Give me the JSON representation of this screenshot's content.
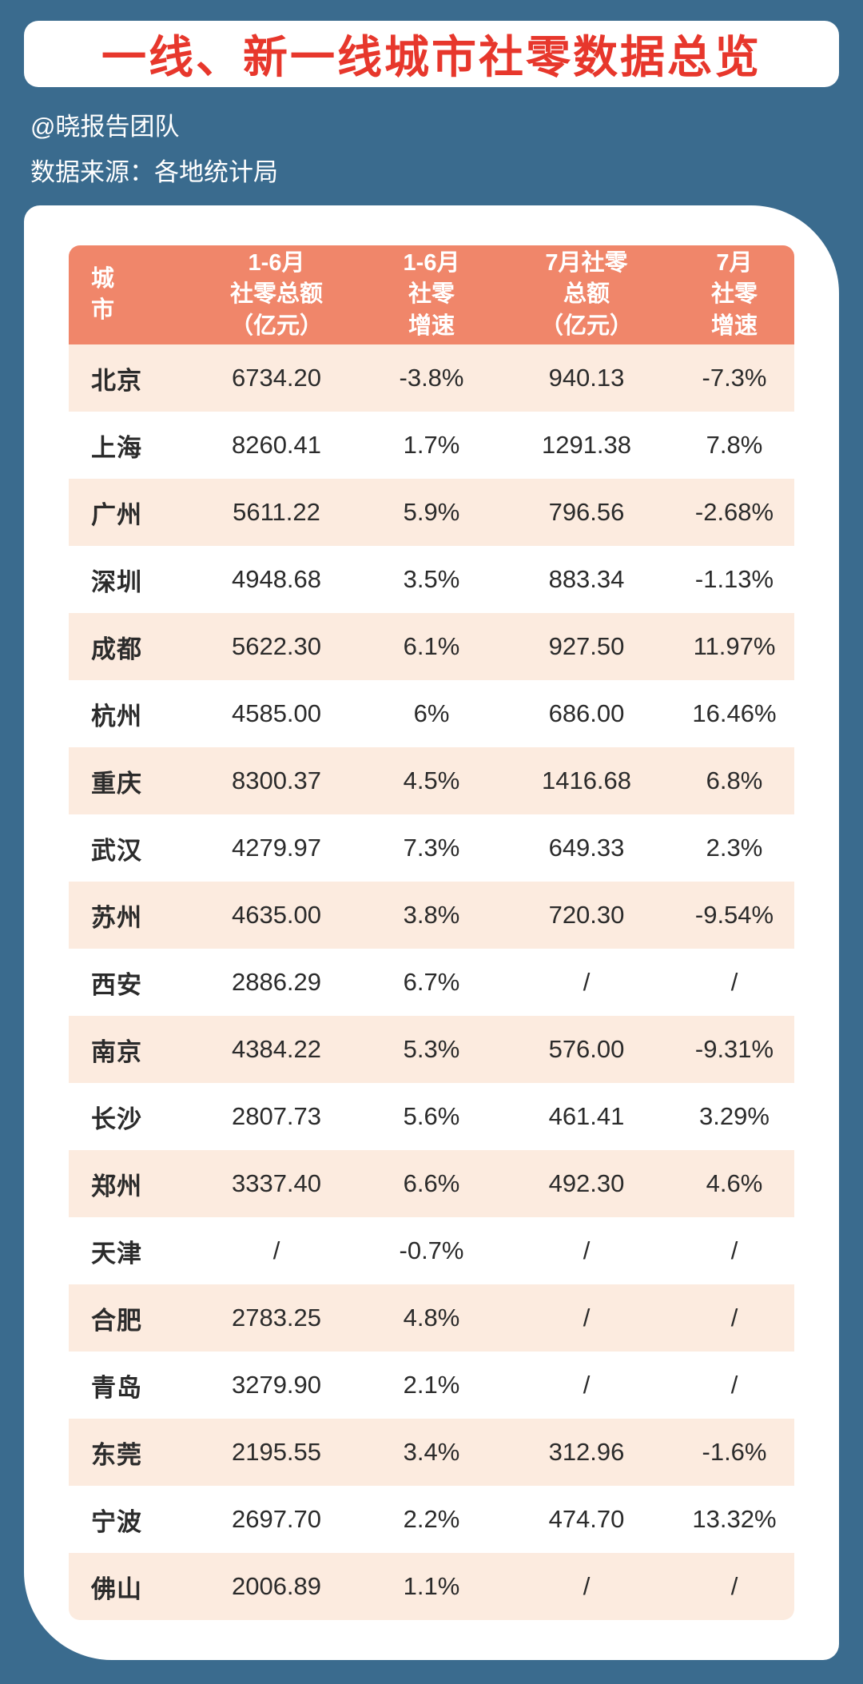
{
  "page": {
    "title": "一线、新一线城市社零数据总览",
    "byline": "@晓报告团队",
    "source": "数据来源：各地统计局"
  },
  "chart_data": {
    "type": "table",
    "title": "一线、新一线城市社零数据总览",
    "columns": [
      "城市",
      "1-6月社零总额（亿元）",
      "1-6月社零增速",
      "7月社零总额（亿元）",
      "7月社零增速"
    ],
    "header_display": [
      "城\n市",
      "1-6月\n社零总额\n（亿元）",
      "1-6月\n社零\n增速",
      "7月社零\n总额\n（亿元）",
      "7月\n社零\n增速"
    ],
    "rows": [
      [
        "北京",
        "6734.20",
        "-3.8%",
        "940.13",
        "-7.3%"
      ],
      [
        "上海",
        "8260.41",
        "1.7%",
        "1291.38",
        "7.8%"
      ],
      [
        "广州",
        "5611.22",
        "5.9%",
        "796.56",
        "-2.68%"
      ],
      [
        "深圳",
        "4948.68",
        "3.5%",
        "883.34",
        "-1.13%"
      ],
      [
        "成都",
        "5622.30",
        "6.1%",
        "927.50",
        "11.97%"
      ],
      [
        "杭州",
        "4585.00",
        "6%",
        "686.00",
        "16.46%"
      ],
      [
        "重庆",
        "8300.37",
        "4.5%",
        "1416.68",
        "6.8%"
      ],
      [
        "武汉",
        "4279.97",
        "7.3%",
        "649.33",
        "2.3%"
      ],
      [
        "苏州",
        "4635.00",
        "3.8%",
        "720.30",
        "-9.54%"
      ],
      [
        "西安",
        "2886.29",
        "6.7%",
        "/",
        "/"
      ],
      [
        "南京",
        "4384.22",
        "5.3%",
        "576.00",
        "-9.31%"
      ],
      [
        "长沙",
        "2807.73",
        "5.6%",
        "461.41",
        "3.29%"
      ],
      [
        "郑州",
        "3337.40",
        "6.6%",
        "492.30",
        "4.6%"
      ],
      [
        "天津",
        "/",
        "-0.7%",
        "/",
        "/"
      ],
      [
        "合肥",
        "2783.25",
        "4.8%",
        "/",
        "/"
      ],
      [
        "青岛",
        "3279.90",
        "2.1%",
        "/",
        "/"
      ],
      [
        "东莞",
        "2195.55",
        "3.4%",
        "312.96",
        "-1.6%"
      ],
      [
        "宁波",
        "2697.70",
        "2.2%",
        "474.70",
        "13.32%"
      ],
      [
        "佛山",
        "2006.89",
        "1.1%",
        "/",
        "/"
      ]
    ]
  },
  "colors": {
    "bg": "#3A6B8E",
    "title_red": "#E7372C",
    "header_coral": "#F0866A",
    "row_peach": "#FCEBDF",
    "card_white": "#FFFFFF",
    "text_dark": "#2B2B2B",
    "text_white": "#FFFFFF"
  }
}
